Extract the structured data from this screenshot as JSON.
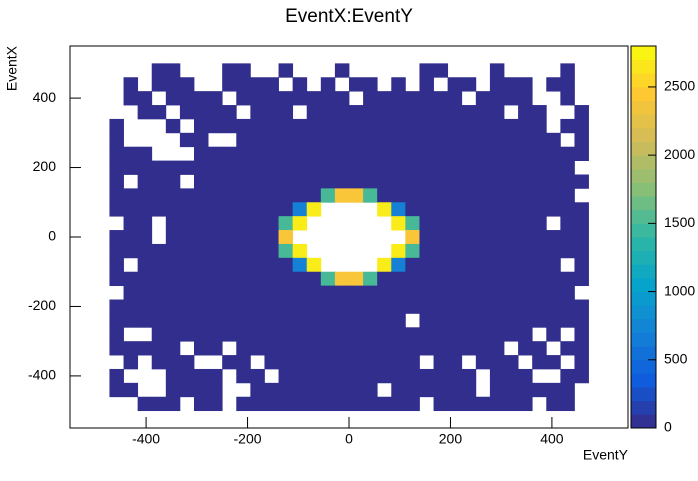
{
  "chart_data": {
    "type": "heatmap",
    "title": "EventX:EventY",
    "x_label": "EventY",
    "y_label": "EventX",
    "xlim": [
      -550,
      550
    ],
    "ylim": [
      -550,
      550
    ],
    "xticks": [
      -400,
      -200,
      0,
      200,
      400
    ],
    "yticks": [
      -400,
      -200,
      0,
      200,
      400
    ],
    "xrange": [
      -500,
      500
    ],
    "yrange": [
      -500,
      500
    ],
    "zlim": [
      0,
      2800
    ],
    "zticks": [
      0,
      500,
      1000,
      1500,
      2000,
      2500
    ],
    "palette": [
      "#352a87",
      "#0f5cdd",
      "#1481d6",
      "#06a4ca",
      "#2eb7a4",
      "#87bf77",
      "#d1bb59",
      "#fec832",
      "#f9fb0e"
    ],
    "values": [
      [
        0,
        0,
        0,
        0,
        30,
        30,
        0,
        0,
        0,
        30,
        30,
        0,
        0,
        30,
        0,
        0,
        0,
        30,
        0,
        0,
        0,
        0,
        0,
        30,
        30,
        0,
        0,
        0,
        30,
        0,
        0,
        0,
        0,
        30,
        0,
        0
      ],
      [
        0,
        0,
        30,
        0,
        30,
        30,
        30,
        0,
        0,
        30,
        30,
        30,
        30,
        0,
        30,
        0,
        30,
        0,
        30,
        30,
        0,
        30,
        0,
        30,
        0,
        30,
        30,
        0,
        30,
        30,
        30,
        0,
        30,
        30,
        0,
        0
      ],
      [
        0,
        0,
        30,
        30,
        0,
        30,
        30,
        30,
        30,
        0,
        30,
        30,
        30,
        30,
        30,
        30,
        30,
        30,
        0,
        30,
        30,
        30,
        30,
        30,
        30,
        30,
        0,
        30,
        30,
        30,
        30,
        0,
        0,
        30,
        0,
        0
      ],
      [
        0,
        0,
        0,
        30,
        30,
        0,
        30,
        30,
        30,
        30,
        0,
        30,
        30,
        30,
        0,
        30,
        30,
        30,
        30,
        30,
        30,
        30,
        30,
        30,
        30,
        30,
        30,
        30,
        30,
        0,
        30,
        30,
        0,
        0,
        30,
        0
      ],
      [
        0,
        30,
        0,
        0,
        0,
        30,
        0,
        30,
        30,
        30,
        30,
        30,
        30,
        30,
        30,
        30,
        30,
        30,
        30,
        30,
        30,
        30,
        30,
        30,
        30,
        30,
        30,
        30,
        30,
        30,
        30,
        30,
        0,
        30,
        30,
        0
      ],
      [
        0,
        30,
        0,
        0,
        0,
        0,
        30,
        30,
        0,
        0,
        30,
        30,
        30,
        30,
        30,
        30,
        30,
        30,
        30,
        30,
        30,
        30,
        30,
        30,
        30,
        30,
        30,
        30,
        30,
        30,
        30,
        30,
        30,
        0,
        30,
        0
      ],
      [
        0,
        30,
        30,
        30,
        0,
        0,
        0,
        30,
        30,
        30,
        30,
        30,
        30,
        30,
        30,
        30,
        30,
        30,
        30,
        30,
        30,
        30,
        30,
        30,
        30,
        30,
        30,
        30,
        30,
        30,
        30,
        30,
        30,
        30,
        30,
        0
      ],
      [
        0,
        30,
        30,
        30,
        30,
        30,
        30,
        30,
        30,
        30,
        30,
        30,
        30,
        30,
        30,
        30,
        30,
        30,
        30,
        30,
        30,
        30,
        30,
        30,
        30,
        30,
        30,
        30,
        30,
        30,
        30,
        30,
        30,
        30,
        0,
        0
      ],
      [
        0,
        30,
        0,
        30,
        30,
        30,
        0,
        30,
        30,
        30,
        30,
        30,
        30,
        30,
        30,
        30,
        30,
        30,
        30,
        30,
        30,
        30,
        30,
        30,
        30,
        30,
        30,
        30,
        30,
        30,
        30,
        30,
        30,
        30,
        30,
        0
      ],
      [
        0,
        30,
        30,
        30,
        30,
        30,
        30,
        30,
        30,
        30,
        30,
        30,
        30,
        30,
        30,
        30,
        1500,
        2400,
        2400,
        1500,
        30,
        30,
        30,
        30,
        30,
        30,
        30,
        30,
        30,
        30,
        30,
        30,
        30,
        30,
        0,
        0
      ],
      [
        0,
        30,
        30,
        30,
        30,
        30,
        30,
        30,
        30,
        30,
        30,
        30,
        30,
        30,
        700,
        2700,
        0,
        0,
        0,
        0,
        2700,
        700,
        30,
        30,
        30,
        30,
        30,
        30,
        30,
        30,
        30,
        30,
        30,
        30,
        30,
        0
      ],
      [
        0,
        0,
        30,
        30,
        0,
        30,
        30,
        30,
        30,
        30,
        30,
        30,
        30,
        1500,
        2700,
        0,
        0,
        0,
        0,
        0,
        0,
        2700,
        1500,
        30,
        30,
        30,
        30,
        30,
        30,
        30,
        30,
        30,
        0,
        30,
        30,
        0
      ],
      [
        0,
        30,
        30,
        30,
        0,
        30,
        30,
        30,
        30,
        30,
        30,
        30,
        30,
        2400,
        0,
        0,
        0,
        0,
        0,
        0,
        0,
        0,
        2400,
        30,
        30,
        30,
        30,
        30,
        30,
        30,
        30,
        30,
        30,
        30,
        30,
        0
      ],
      [
        0,
        30,
        30,
        30,
        30,
        30,
        30,
        30,
        30,
        30,
        30,
        30,
        30,
        1500,
        2700,
        0,
        0,
        0,
        0,
        0,
        0,
        2700,
        1500,
        30,
        30,
        30,
        30,
        30,
        30,
        30,
        30,
        30,
        30,
        30,
        30,
        0
      ],
      [
        0,
        30,
        0,
        30,
        30,
        30,
        30,
        30,
        30,
        30,
        30,
        30,
        30,
        30,
        700,
        2700,
        0,
        0,
        0,
        0,
        2700,
        700,
        30,
        30,
        30,
        30,
        30,
        30,
        30,
        30,
        30,
        30,
        30,
        0,
        30,
        0
      ],
      [
        0,
        30,
        30,
        30,
        30,
        30,
        30,
        30,
        30,
        30,
        30,
        30,
        30,
        30,
        30,
        30,
        1500,
        2400,
        2400,
        1500,
        30,
        30,
        30,
        30,
        30,
        30,
        30,
        30,
        30,
        30,
        30,
        30,
        30,
        30,
        30,
        0
      ],
      [
        0,
        0,
        30,
        30,
        30,
        30,
        30,
        30,
        30,
        30,
        30,
        30,
        30,
        30,
        30,
        30,
        30,
        30,
        30,
        30,
        30,
        30,
        30,
        30,
        30,
        30,
        30,
        30,
        30,
        30,
        30,
        30,
        30,
        30,
        0,
        0
      ],
      [
        0,
        30,
        30,
        30,
        30,
        30,
        30,
        30,
        30,
        30,
        30,
        30,
        30,
        30,
        30,
        30,
        30,
        30,
        30,
        30,
        30,
        30,
        30,
        30,
        30,
        30,
        30,
        30,
        30,
        30,
        30,
        30,
        30,
        30,
        30,
        0
      ],
      [
        0,
        30,
        30,
        30,
        30,
        30,
        30,
        30,
        30,
        30,
        30,
        30,
        30,
        30,
        30,
        30,
        30,
        30,
        30,
        30,
        30,
        30,
        0,
        30,
        30,
        30,
        30,
        30,
        30,
        30,
        30,
        30,
        30,
        30,
        30,
        0
      ],
      [
        0,
        30,
        0,
        0,
        30,
        30,
        30,
        30,
        30,
        30,
        30,
        30,
        30,
        30,
        30,
        30,
        30,
        30,
        30,
        30,
        30,
        30,
        30,
        30,
        30,
        30,
        30,
        30,
        30,
        30,
        30,
        0,
        30,
        0,
        30,
        0
      ],
      [
        0,
        30,
        30,
        30,
        30,
        30,
        0,
        30,
        30,
        0,
        30,
        30,
        30,
        30,
        30,
        30,
        30,
        30,
        30,
        30,
        30,
        30,
        30,
        30,
        30,
        30,
        30,
        30,
        30,
        0,
        30,
        30,
        0,
        30,
        30,
        0
      ],
      [
        0,
        0,
        30,
        0,
        30,
        30,
        30,
        0,
        0,
        30,
        30,
        0,
        30,
        30,
        30,
        30,
        30,
        30,
        30,
        30,
        30,
        30,
        30,
        0,
        30,
        30,
        0,
        30,
        30,
        30,
        0,
        30,
        30,
        0,
        30,
        0
      ],
      [
        0,
        30,
        0,
        0,
        0,
        30,
        30,
        30,
        30,
        0,
        30,
        30,
        0,
        30,
        30,
        30,
        30,
        30,
        30,
        30,
        30,
        30,
        30,
        30,
        30,
        30,
        30,
        0,
        30,
        30,
        30,
        0,
        0,
        30,
        30,
        0
      ],
      [
        0,
        30,
        30,
        0,
        0,
        30,
        30,
        30,
        30,
        0,
        0,
        30,
        30,
        30,
        30,
        30,
        30,
        30,
        30,
        30,
        0,
        30,
        30,
        30,
        30,
        30,
        30,
        0,
        30,
        30,
        30,
        30,
        30,
        30,
        0,
        0
      ],
      [
        0,
        0,
        0,
        30,
        30,
        30,
        0,
        30,
        30,
        0,
        30,
        30,
        30,
        30,
        30,
        30,
        30,
        30,
        30,
        30,
        30,
        30,
        30,
        0,
        30,
        30,
        30,
        30,
        30,
        30,
        30,
        0,
        30,
        30,
        0,
        0
      ]
    ]
  }
}
